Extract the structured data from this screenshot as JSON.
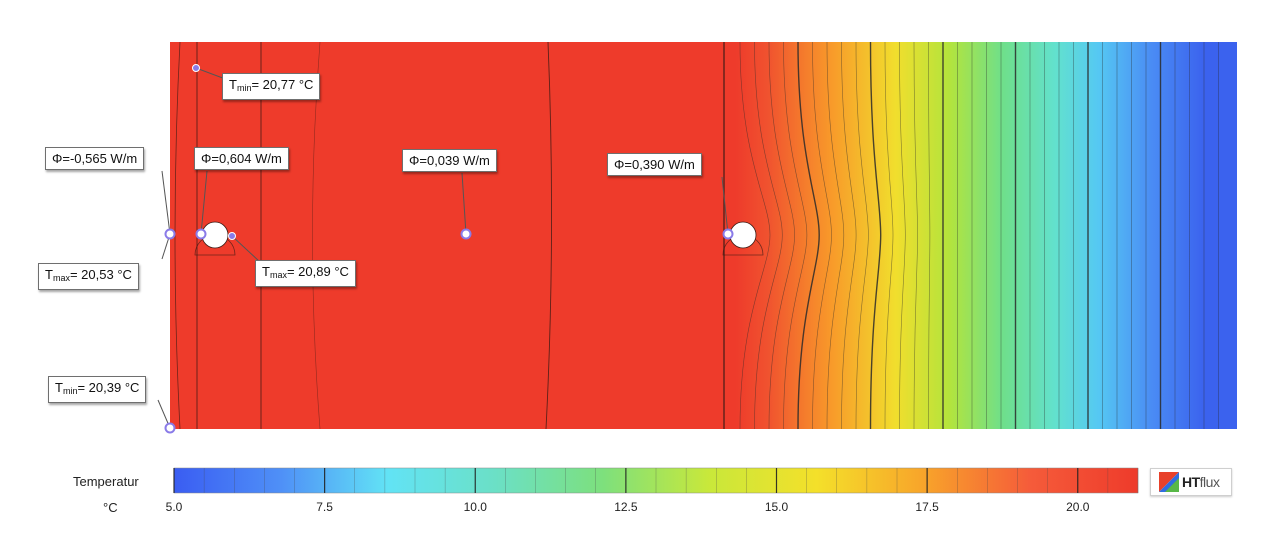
{
  "colors": {
    "scale": [
      "#3a5df2",
      "#4f90f7",
      "#62e3f5",
      "#6be0c6",
      "#7de07d",
      "#c9e83a",
      "#f4e02a",
      "#f8a42a",
      "#f55b3a",
      "#ee3b2b"
    ],
    "field_warm": "#ee3b2b",
    "field_cold": "#3b62ee",
    "marker": "#8a7be8",
    "logo_red": "#e8412a",
    "logo_green": "#58b847",
    "logo_blue": "#2f6de0"
  },
  "callouts": [
    {
      "id": "tmin-top",
      "prefix": "T",
      "sub": "min",
      "text": "= 20,77 °C"
    },
    {
      "id": "phi-left",
      "text": "Φ=-0,565 W/m"
    },
    {
      "id": "phi-pipe1",
      "text": "Φ=0,604 W/m"
    },
    {
      "id": "phi-mid",
      "text": "Φ=0,039 W/m"
    },
    {
      "id": "phi-pipe2",
      "text": "Φ=0,390 W/m"
    },
    {
      "id": "tmax-left",
      "prefix": "T",
      "sub": "max",
      "text": "= 20,53 °C"
    },
    {
      "id": "tmax-pipe",
      "prefix": "T",
      "sub": "max",
      "text": "= 20,89 °C"
    },
    {
      "id": "tmin-bottom",
      "prefix": "T",
      "sub": "min",
      "text": "= 20,39 °C"
    }
  ],
  "scale": {
    "title": "Temperatur",
    "unit": "°C",
    "min": 5.0,
    "max": 21.0,
    "ticks": [
      "5.0",
      "7.5",
      "10.0",
      "12.5",
      "15.0",
      "17.5",
      "20.0"
    ]
  },
  "logo": {
    "icon": "htflux-logo-icon",
    "text_bold": "HT",
    "text_light": "flux"
  }
}
